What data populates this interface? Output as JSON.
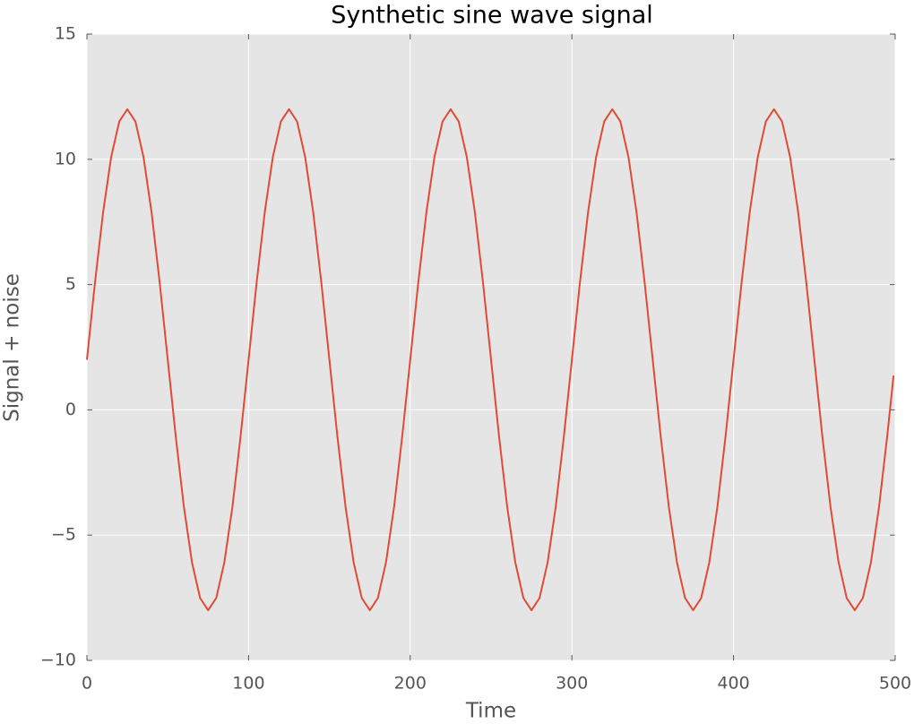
{
  "chart_data": {
    "type": "line",
    "title": "Synthetic sine wave signal",
    "xlabel": "Time",
    "ylabel": "Signal + noise",
    "x": [
      0,
      5,
      10,
      15,
      20,
      25,
      30,
      35,
      40,
      45,
      50,
      55,
      60,
      65,
      70,
      75,
      80,
      85,
      90,
      95,
      100,
      105,
      110,
      115,
      120,
      125,
      130,
      135,
      140,
      145,
      150,
      155,
      160,
      165,
      170,
      175,
      180,
      185,
      190,
      195,
      200,
      205,
      210,
      215,
      220,
      225,
      230,
      235,
      240,
      245,
      250,
      255,
      260,
      265,
      270,
      275,
      280,
      285,
      290,
      295,
      300,
      305,
      310,
      315,
      320,
      325,
      330,
      335,
      340,
      345,
      350,
      355,
      360,
      365,
      370,
      375,
      380,
      385,
      390,
      395,
      400,
      405,
      410,
      415,
      420,
      425,
      430,
      435,
      440,
      445,
      450,
      455,
      460,
      465,
      470,
      475,
      480,
      485,
      490,
      495,
      499
    ],
    "values": [
      2,
      5.09,
      7.88,
      10.09,
      11.51,
      12,
      11.51,
      10.09,
      7.88,
      5.09,
      2,
      -1.09,
      -3.88,
      -6.09,
      -7.51,
      -8,
      -7.51,
      -6.09,
      -3.88,
      -1.09,
      2,
      5.09,
      7.88,
      10.09,
      11.51,
      12,
      11.51,
      10.09,
      7.88,
      5.09,
      2,
      -1.09,
      -3.88,
      -6.09,
      -7.51,
      -8,
      -7.51,
      -6.09,
      -3.88,
      -1.09,
      2,
      5.09,
      7.88,
      10.09,
      11.51,
      12,
      11.51,
      10.09,
      7.88,
      5.09,
      2,
      -1.09,
      -3.88,
      -6.09,
      -7.51,
      -8,
      -7.51,
      -6.09,
      -3.88,
      -1.09,
      2,
      5.09,
      7.88,
      10.09,
      11.51,
      12,
      11.51,
      10.09,
      7.88,
      5.09,
      2,
      -1.09,
      -3.88,
      -6.09,
      -7.51,
      -8,
      -7.51,
      -6.09,
      -3.88,
      -1.09,
      2,
      5.09,
      7.88,
      10.09,
      11.51,
      12,
      11.51,
      10.09,
      7.88,
      5.09,
      2,
      -1.09,
      -3.88,
      -6.09,
      -7.51,
      -8,
      -7.51,
      -6.09,
      -3.88,
      -1.09,
      1.37
    ],
    "color": "#e24a33",
    "xlim": [
      0,
      500
    ],
    "xticks": [
      0,
      100,
      200,
      300,
      400,
      500
    ],
    "ylim": [
      -10,
      15
    ],
    "yticks": [
      {
        "value": -10,
        "label": "−10"
      },
      {
        "value": -5,
        "label": "−5"
      },
      0,
      5,
      10,
      15
    ],
    "grid": true
  }
}
